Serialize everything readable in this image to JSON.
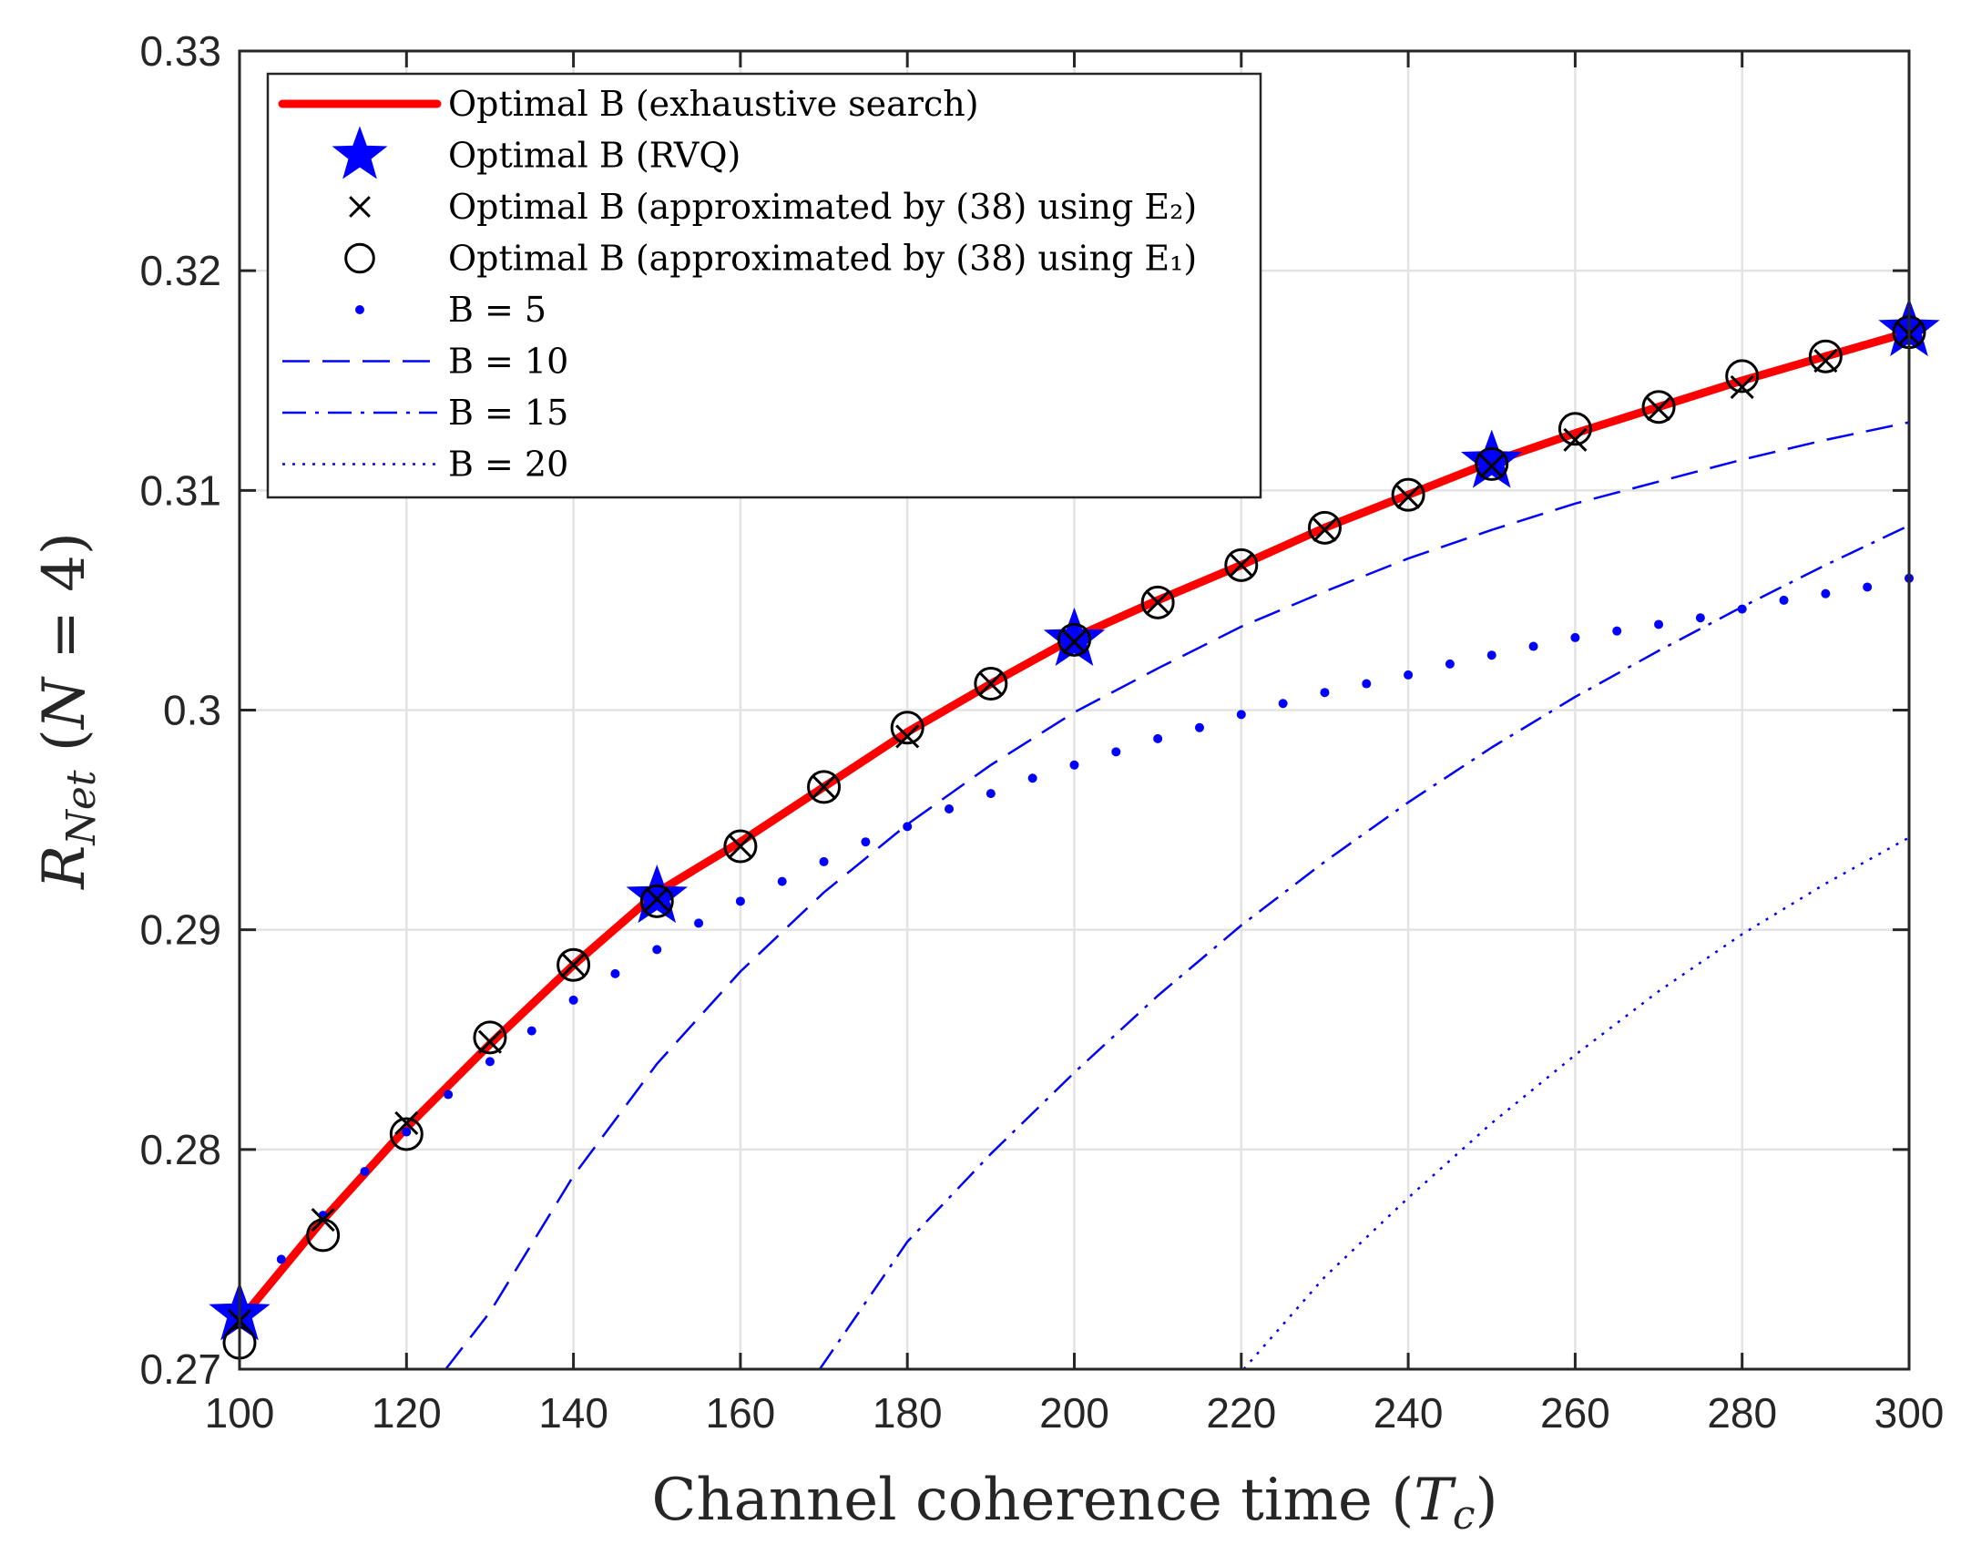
{
  "chart_data": {
    "type": "line",
    "title": "",
    "xlabel": "Channel coherence time (T_c)",
    "ylabel": "R_Net (N = 4)",
    "xlim": [
      100,
      300
    ],
    "ylim": [
      0.27,
      0.33
    ],
    "grid": true,
    "legend_position": "top-left",
    "x_ticks": [
      100,
      120,
      140,
      160,
      180,
      200,
      220,
      240,
      260,
      280,
      300
    ],
    "y_ticks": [
      0.27,
      0.28,
      0.29,
      0.3,
      0.31,
      0.32,
      0.33
    ],
    "x_tick_labels": [
      "100",
      "120",
      "140",
      "160",
      "180",
      "200",
      "220",
      "240",
      "260",
      "280",
      "300"
    ],
    "y_tick_labels": [
      "0.27",
      "0.28",
      "0.29",
      "0.3",
      "0.31",
      "0.32",
      "0.33"
    ],
    "series": [
      {
        "name": "Optimal B (exhaustive search)",
        "legend_label": "Optimal B (exhaustive search)",
        "style": "solid-thick",
        "color": "#ff0000",
        "x": [
          100,
          110,
          120,
          130,
          140,
          150,
          160,
          170,
          180,
          190,
          200,
          210,
          220,
          230,
          240,
          250,
          260,
          270,
          280,
          290,
          300
        ],
        "values": [
          0.2722,
          0.2768,
          0.281,
          0.2848,
          0.2884,
          0.2917,
          0.294,
          0.2965,
          0.299,
          0.3012,
          0.3033,
          0.305,
          0.3066,
          0.3083,
          0.3098,
          0.3113,
          0.3126,
          0.3138,
          0.315,
          0.3161,
          0.3172
        ]
      },
      {
        "name": "Optimal B (RVQ)",
        "legend_label": "Optimal B (RVQ)",
        "style": "star",
        "color": "#0000ff",
        "x": [
          100,
          150,
          200,
          250,
          300
        ],
        "values": [
          0.2725,
          0.2915,
          0.3032,
          0.3113,
          0.3173
        ]
      },
      {
        "name": "Optimal B (approximated by (38) using E2)",
        "legend_label": "Optimal B (approximated by (38) using E₂)",
        "style": "x-marker",
        "color": "#000000",
        "x": [
          100,
          110,
          120,
          130,
          140,
          150,
          160,
          170,
          180,
          190,
          200,
          210,
          220,
          230,
          240,
          250,
          260,
          270,
          280,
          290,
          300
        ],
        "values": [
          0.2722,
          0.2768,
          0.2812,
          0.2849,
          0.2884,
          0.2914,
          0.2938,
          0.2965,
          0.2988,
          0.3012,
          0.3031,
          0.3049,
          0.3066,
          0.3082,
          0.3097,
          0.3111,
          0.3123,
          0.3137,
          0.3147,
          0.3159,
          0.3171
        ]
      },
      {
        "name": "Optimal B (approximated by (38) using E1)",
        "legend_label": "Optimal B (approximated by (38) using E₁)",
        "style": "o-marker",
        "color": "#000000",
        "x": [
          100,
          110,
          120,
          130,
          140,
          150,
          160,
          170,
          180,
          190,
          200,
          210,
          220,
          230,
          240,
          250,
          260,
          270,
          280,
          290,
          300
        ],
        "values": [
          0.2712,
          0.2761,
          0.2807,
          0.2851,
          0.2884,
          0.2913,
          0.2938,
          0.2965,
          0.2992,
          0.3012,
          0.3032,
          0.3049,
          0.3066,
          0.3083,
          0.3098,
          0.3112,
          0.3128,
          0.3138,
          0.3152,
          0.3161,
          0.3172
        ]
      },
      {
        "name": "B = 5",
        "legend_label": "B = 5",
        "style": "point",
        "color": "#0000ff",
        "x": [
          100,
          105,
          110,
          115,
          120,
          125,
          130,
          135,
          140,
          145,
          150,
          155,
          160,
          165,
          170,
          175,
          180,
          185,
          190,
          195,
          200,
          205,
          210,
          215,
          220,
          225,
          230,
          235,
          240,
          245,
          250,
          255,
          260,
          265,
          270,
          275,
          280,
          285,
          290,
          295,
          300
        ],
        "values": [
          0.2728,
          0.275,
          0.277,
          0.279,
          0.2808,
          0.2825,
          0.284,
          0.2854,
          0.2868,
          0.288,
          0.2891,
          0.2903,
          0.2913,
          0.2922,
          0.2931,
          0.294,
          0.2947,
          0.2955,
          0.2962,
          0.2969,
          0.2975,
          0.2981,
          0.2987,
          0.2992,
          0.2998,
          0.3003,
          0.3008,
          0.3012,
          0.3016,
          0.3021,
          0.3025,
          0.3029,
          0.3033,
          0.3036,
          0.3039,
          0.3042,
          0.3046,
          0.305,
          0.3053,
          0.3056,
          0.306
        ]
      },
      {
        "name": "B = 10",
        "legend_label": "B = 10",
        "style": "dashed",
        "color": "#0000ff",
        "x": [
          124.7,
          130,
          140,
          150,
          160,
          170,
          180,
          190,
          200,
          210,
          220,
          230,
          240,
          250,
          260,
          270,
          280,
          290,
          300
        ],
        "values": [
          0.27,
          0.2726,
          0.2788,
          0.2839,
          0.2881,
          0.2917,
          0.2948,
          0.2975,
          0.2999,
          0.3019,
          0.3038,
          0.3054,
          0.3069,
          0.3082,
          0.3094,
          0.3104,
          0.3114,
          0.3123,
          0.3131
        ]
      },
      {
        "name": "B = 15",
        "legend_label": "B = 15",
        "style": "dashdot",
        "color": "#0000ff",
        "x": [
          169.5,
          180,
          190,
          200,
          210,
          220,
          230,
          240,
          250,
          260,
          270,
          280,
          290,
          300
        ],
        "values": [
          0.27,
          0.2758,
          0.2798,
          0.2835,
          0.287,
          0.2902,
          0.2931,
          0.2958,
          0.2983,
          0.3006,
          0.3027,
          0.3047,
          0.3066,
          0.3084
        ]
      },
      {
        "name": "B = 20",
        "legend_label": "B = 20",
        "style": "dotted",
        "color": "#0000ff",
        "x": [
          220.3,
          230,
          240,
          250,
          260,
          270,
          280,
          290,
          300
        ],
        "values": [
          0.27,
          0.2742,
          0.2778,
          0.2812,
          0.2843,
          0.2872,
          0.2898,
          0.2921,
          0.2942
        ]
      }
    ]
  }
}
